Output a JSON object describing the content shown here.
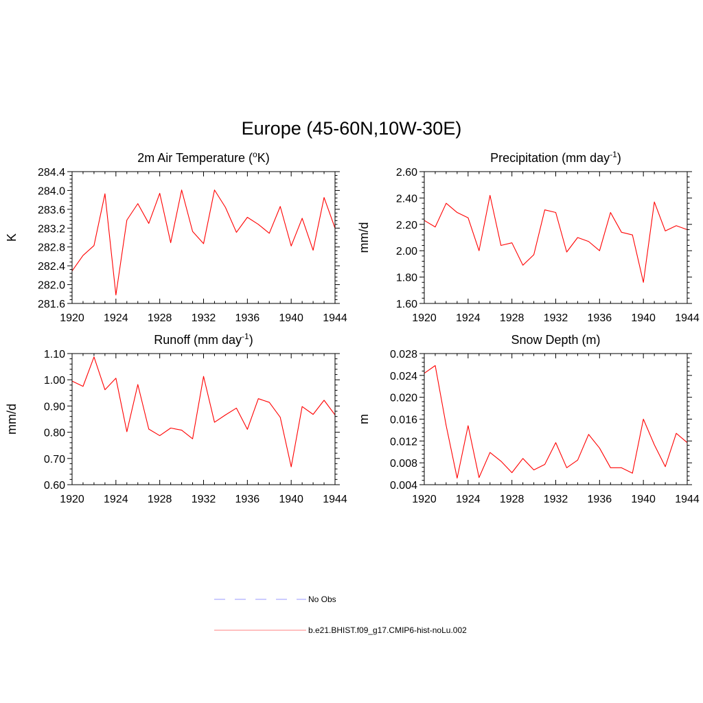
{
  "title": "Europe (45-60N,10W-30E)",
  "colors": {
    "model": "#ff0000",
    "obs": "#9999ff",
    "axis": "#000000"
  },
  "legend": {
    "entries": [
      {
        "label": "No Obs",
        "style": "dashed",
        "color": "#9999ff"
      },
      {
        "label": "b.e21.BHIST.f09_g17.CMIP6-hist-noLu.002",
        "style": "solid",
        "color": "#ff8080"
      }
    ]
  },
  "chart_data": [
    {
      "type": "line",
      "title_text": "2m Air Temperature (",
      "title_super": "o",
      "title_tail": "K)",
      "ylabel": "K",
      "xlim": [
        1920,
        1944
      ],
      "ylim": [
        281.6,
        284.4
      ],
      "xticks": [
        "1920",
        "1924",
        "1928",
        "1932",
        "1936",
        "1940",
        "1944"
      ],
      "yticks": [
        "281.6",
        "282.0",
        "282.4",
        "282.8",
        "283.2",
        "283.6",
        "284.0",
        "284.4"
      ],
      "x": [
        1920,
        1921,
        1922,
        1923,
        1924,
        1925,
        1926,
        1927,
        1928,
        1929,
        1930,
        1931,
        1932,
        1933,
        1934,
        1935,
        1936,
        1937,
        1938,
        1939,
        1940,
        1941,
        1942,
        1943,
        1944
      ],
      "series": [
        {
          "name": "b.e21.BHIST.f09_g17.CMIP6-hist-noLu.002",
          "values": [
            282.29,
            282.62,
            282.83,
            283.93,
            281.78,
            283.37,
            283.72,
            283.3,
            283.94,
            282.89,
            284.01,
            283.13,
            282.87,
            284.01,
            283.64,
            283.11,
            283.43,
            283.28,
            283.09,
            283.66,
            282.82,
            283.41,
            282.73,
            283.85,
            283.2
          ]
        }
      ]
    },
    {
      "type": "line",
      "title_text": "Precipitation (mm day",
      "title_super": "-1",
      "title_tail": ")",
      "ylabel": "mm/d",
      "xlim": [
        1920,
        1944
      ],
      "ylim": [
        1.6,
        2.6
      ],
      "xticks": [
        "1920",
        "1924",
        "1928",
        "1932",
        "1936",
        "1940",
        "1944"
      ],
      "yticks": [
        "1.60",
        "1.80",
        "2.00",
        "2.20",
        "2.40",
        "2.60"
      ],
      "x": [
        1920,
        1921,
        1922,
        1923,
        1924,
        1925,
        1926,
        1927,
        1928,
        1929,
        1930,
        1931,
        1932,
        1933,
        1934,
        1935,
        1936,
        1937,
        1938,
        1939,
        1940,
        1941,
        1942,
        1943,
        1944
      ],
      "series": [
        {
          "name": "b.e21.BHIST.f09_g17.CMIP6-hist-noLu.002",
          "values": [
            2.23,
            2.18,
            2.36,
            2.29,
            2.25,
            2.0,
            2.42,
            2.04,
            2.06,
            1.89,
            1.97,
            2.31,
            2.29,
            1.99,
            2.1,
            2.07,
            2.0,
            2.29,
            2.14,
            2.12,
            1.76,
            2.37,
            2.15,
            2.19,
            2.16
          ]
        }
      ]
    },
    {
      "type": "line",
      "title_text": "Runoff (mm day",
      "title_super": "-1",
      "title_tail": ")",
      "ylabel": "mm/d",
      "xlim": [
        1920,
        1944
      ],
      "ylim": [
        0.6,
        1.1
      ],
      "xticks": [
        "1920",
        "1924",
        "1928",
        "1932",
        "1936",
        "1940",
        "1944"
      ],
      "yticks": [
        "0.60",
        "0.70",
        "0.80",
        "0.90",
        "1.00",
        "1.10"
      ],
      "x": [
        1920,
        1921,
        1922,
        1923,
        1924,
        1925,
        1926,
        1927,
        1928,
        1929,
        1930,
        1931,
        1932,
        1933,
        1934,
        1935,
        1936,
        1937,
        1938,
        1939,
        1940,
        1941,
        1942,
        1943,
        1944
      ],
      "series": [
        {
          "name": "b.e21.BHIST.f09_g17.CMIP6-hist-noLu.002",
          "values": [
            0.995,
            0.975,
            1.087,
            0.962,
            1.006,
            0.802,
            0.982,
            0.812,
            0.787,
            0.816,
            0.808,
            0.775,
            1.013,
            0.838,
            0.866,
            0.892,
            0.811,
            0.928,
            0.914,
            0.857,
            0.668,
            0.898,
            0.868,
            0.922,
            0.866
          ]
        }
      ]
    },
    {
      "type": "line",
      "title_text": "Snow Depth (m)",
      "title_super": "",
      "title_tail": "",
      "ylabel": "m",
      "xlim": [
        1920,
        1944
      ],
      "ylim": [
        0.004,
        0.028
      ],
      "xticks": [
        "1920",
        "1924",
        "1928",
        "1932",
        "1936",
        "1940",
        "1944"
      ],
      "yticks": [
        "0.004",
        "0.008",
        "0.012",
        "0.016",
        "0.020",
        "0.024",
        "0.028"
      ],
      "x": [
        1920,
        1921,
        1922,
        1923,
        1924,
        1925,
        1926,
        1927,
        1928,
        1929,
        1930,
        1931,
        1932,
        1933,
        1934,
        1935,
        1936,
        1937,
        1938,
        1939,
        1940,
        1941,
        1942,
        1943,
        1944
      ],
      "series": [
        {
          "name": "b.e21.BHIST.f09_g17.CMIP6-hist-noLu.002",
          "values": [
            0.0244,
            0.0258,
            0.0148,
            0.0052,
            0.0148,
            0.0053,
            0.0099,
            0.0083,
            0.0062,
            0.0088,
            0.0067,
            0.0077,
            0.0117,
            0.0071,
            0.0085,
            0.0132,
            0.0107,
            0.0071,
            0.0071,
            0.0061,
            0.016,
            0.0113,
            0.0073,
            0.0134,
            0.0117
          ]
        }
      ]
    }
  ]
}
